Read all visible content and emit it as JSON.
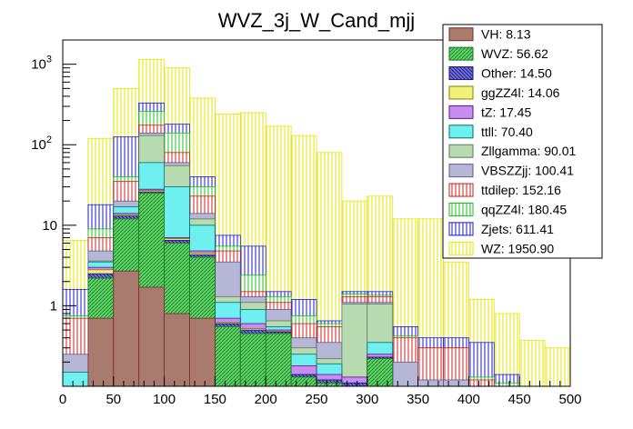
{
  "chart_data": {
    "type": "bar",
    "stacked": true,
    "title": "WVZ_3j_W_Cand_mjj",
    "xlabel": "",
    "ylabel": "",
    "xlim": [
      0,
      500
    ],
    "ylim_log": [
      0.1,
      2000
    ],
    "yscale": "log",
    "bin_width": 25,
    "x_ticks": [
      0,
      50,
      100,
      150,
      200,
      250,
      300,
      350,
      400,
      450,
      500
    ],
    "y_ticks": [
      {
        "value": 1,
        "label": "1"
      },
      {
        "value": 10,
        "label": "10"
      },
      {
        "value": 100,
        "label": "10",
        "exp": "2"
      },
      {
        "value": 1000,
        "label": "10",
        "exp": "3"
      }
    ],
    "bin_edges": [
      0,
      25,
      50,
      75,
      100,
      125,
      150,
      175,
      200,
      225,
      250,
      275,
      300,
      325,
      350,
      375,
      400,
      425,
      450,
      475,
      500
    ],
    "stack_tops": [
      {
        "name": "VH",
        "values": [
          0.05,
          0.7,
          2.7,
          1.7,
          0.8,
          0.7,
          0.05,
          0.05,
          0.05,
          0.05,
          0.05,
          0.05,
          0.05,
          0.05,
          0.05,
          0.05,
          0.05,
          0.05,
          0.05,
          0.05
        ]
      },
      {
        "name": "WVZ",
        "values": [
          0.05,
          2.2,
          12,
          25,
          6,
          4,
          0.55,
          0.45,
          0.45,
          0.13,
          0.11,
          0.1,
          0.22,
          0.05,
          0.05,
          0.05,
          0.05,
          0.05,
          0.05,
          0.05
        ]
      },
      {
        "name": "Other",
        "values": [
          0.07,
          2.5,
          13,
          26,
          6.5,
          4.3,
          0.6,
          0.5,
          0.47,
          0.14,
          0.12,
          0.11,
          0.23,
          0.06,
          0.06,
          0.05,
          0.05,
          0.05,
          0.05,
          0.05
        ]
      },
      {
        "name": "ggZZ4l",
        "values": [
          0.08,
          2.8,
          13.5,
          27,
          6.8,
          4.5,
          0.62,
          0.52,
          0.48,
          0.14,
          0.12,
          0.11,
          0.23,
          0.06,
          0.06,
          0.05,
          0.05,
          0.05,
          0.05,
          0.05
        ]
      },
      {
        "name": "tZ",
        "values": [
          0.09,
          3,
          14,
          28,
          7,
          4.8,
          0.7,
          0.6,
          0.5,
          0.18,
          0.14,
          0.13,
          0.25,
          0.07,
          0.07,
          0.06,
          0.06,
          0.05,
          0.05,
          0.05
        ]
      },
      {
        "name": "ttll",
        "values": [
          0.15,
          3.5,
          17,
          60,
          30,
          10,
          1.1,
          0.9,
          0.55,
          0.25,
          0.19,
          0.13,
          0.35,
          0.09,
          0.08,
          0.08,
          0.07,
          0.06,
          0.05,
          0.05
        ]
      },
      {
        "name": "Zllgamma",
        "values": [
          0.15,
          3.6,
          17,
          130,
          55,
          12,
          1.3,
          1.1,
          0.65,
          0.3,
          0.22,
          1.05,
          1.05,
          0.1,
          0.1,
          0.09,
          0.08,
          0.07,
          0.06,
          0.05
        ]
      },
      {
        "name": "VBSZZjj",
        "values": [
          0.25,
          4.8,
          20,
          140,
          60,
          14,
          3.5,
          1.3,
          0.9,
          0.4,
          0.35,
          1.1,
          1.1,
          0.2,
          0.12,
          0.12,
          0.1,
          0.08,
          0.07,
          0.06
        ]
      },
      {
        "name": "ttdilep",
        "values": [
          0.7,
          7,
          35,
          175,
          80,
          23,
          4.8,
          1.5,
          1.1,
          0.6,
          0.55,
          1.3,
          1.3,
          0.4,
          0.3,
          0.3,
          0.12,
          0.1,
          0.08,
          0.06
        ]
      },
      {
        "name": "qqZZ4l",
        "values": [
          0.75,
          9,
          40,
          260,
          140,
          30,
          5.5,
          2.4,
          1.3,
          0.75,
          0.6,
          1.4,
          1.35,
          0.42,
          0.3,
          0.3,
          0.13,
          0.11,
          0.09,
          0.07
        ]
      },
      {
        "name": "Zjets",
        "values": [
          1.6,
          18,
          125,
          330,
          180,
          40,
          7.5,
          5.5,
          1.5,
          1.2,
          0.65,
          1.5,
          1.5,
          0.55,
          0.4,
          0.4,
          0.35,
          0.14,
          0.1,
          0.08
        ]
      },
      {
        "name": "WZ",
        "values": [
          6.5,
          120,
          500,
          1150,
          900,
          380,
          240,
          250,
          170,
          130,
          80,
          20,
          23,
          12,
          12,
          3.5,
          1.2,
          0.8,
          0.37,
          0.3
        ]
      }
    ],
    "legend": [
      {
        "name": "VH",
        "label": "VH: 8.13",
        "fill": "#a97b6e",
        "pattern": "solid",
        "line": "#7a2a2a"
      },
      {
        "name": "WVZ",
        "label": "WVZ: 56.62",
        "fill": "#5dd36a",
        "pattern": "diag",
        "line": "#1a7a1a"
      },
      {
        "name": "Other",
        "label": "Other: 14.50",
        "fill": "#6a6acf",
        "pattern": "diag",
        "line": "#1a1a80"
      },
      {
        "name": "ggZZ4l",
        "label": "ggZZ4l: 14.06",
        "fill": "#f2f27a",
        "pattern": "solid",
        "line": "#808000"
      },
      {
        "name": "tZ",
        "label": "tZ: 17.45",
        "fill": "#c68ef0",
        "pattern": "solid",
        "line": "#6a0a8a"
      },
      {
        "name": "ttll",
        "label": "ttll: 70.40",
        "fill": "#6ef0f0",
        "pattern": "solid",
        "line": "#0a6a6a"
      },
      {
        "name": "Zllgamma",
        "label": "Zllgamma: 90.01",
        "fill": "#b7dab0",
        "pattern": "solid",
        "line": "#5a7a5a"
      },
      {
        "name": "VBSZZjj",
        "label": "VBSZZjj: 100.41",
        "fill": "#b6b6d6",
        "pattern": "solid",
        "line": "#5a5a8a"
      },
      {
        "name": "ttdilep",
        "label": "ttdilep: 152.16",
        "fill": "#ffffff",
        "pattern": "vert",
        "line": "#d01a1a"
      },
      {
        "name": "qqZZ4l",
        "label": "qqZZ4l: 180.45",
        "fill": "#ffffff",
        "pattern": "vert",
        "line": "#1ac01a"
      },
      {
        "name": "Zjets",
        "label": "Zjets: 611.41",
        "fill": "#ffffff",
        "pattern": "vert",
        "line": "#1a1ad0"
      },
      {
        "name": "WZ",
        "label": "WZ: 1950.90",
        "fill": "#ffffff",
        "pattern": "vert",
        "line": "#e6e600"
      }
    ]
  }
}
